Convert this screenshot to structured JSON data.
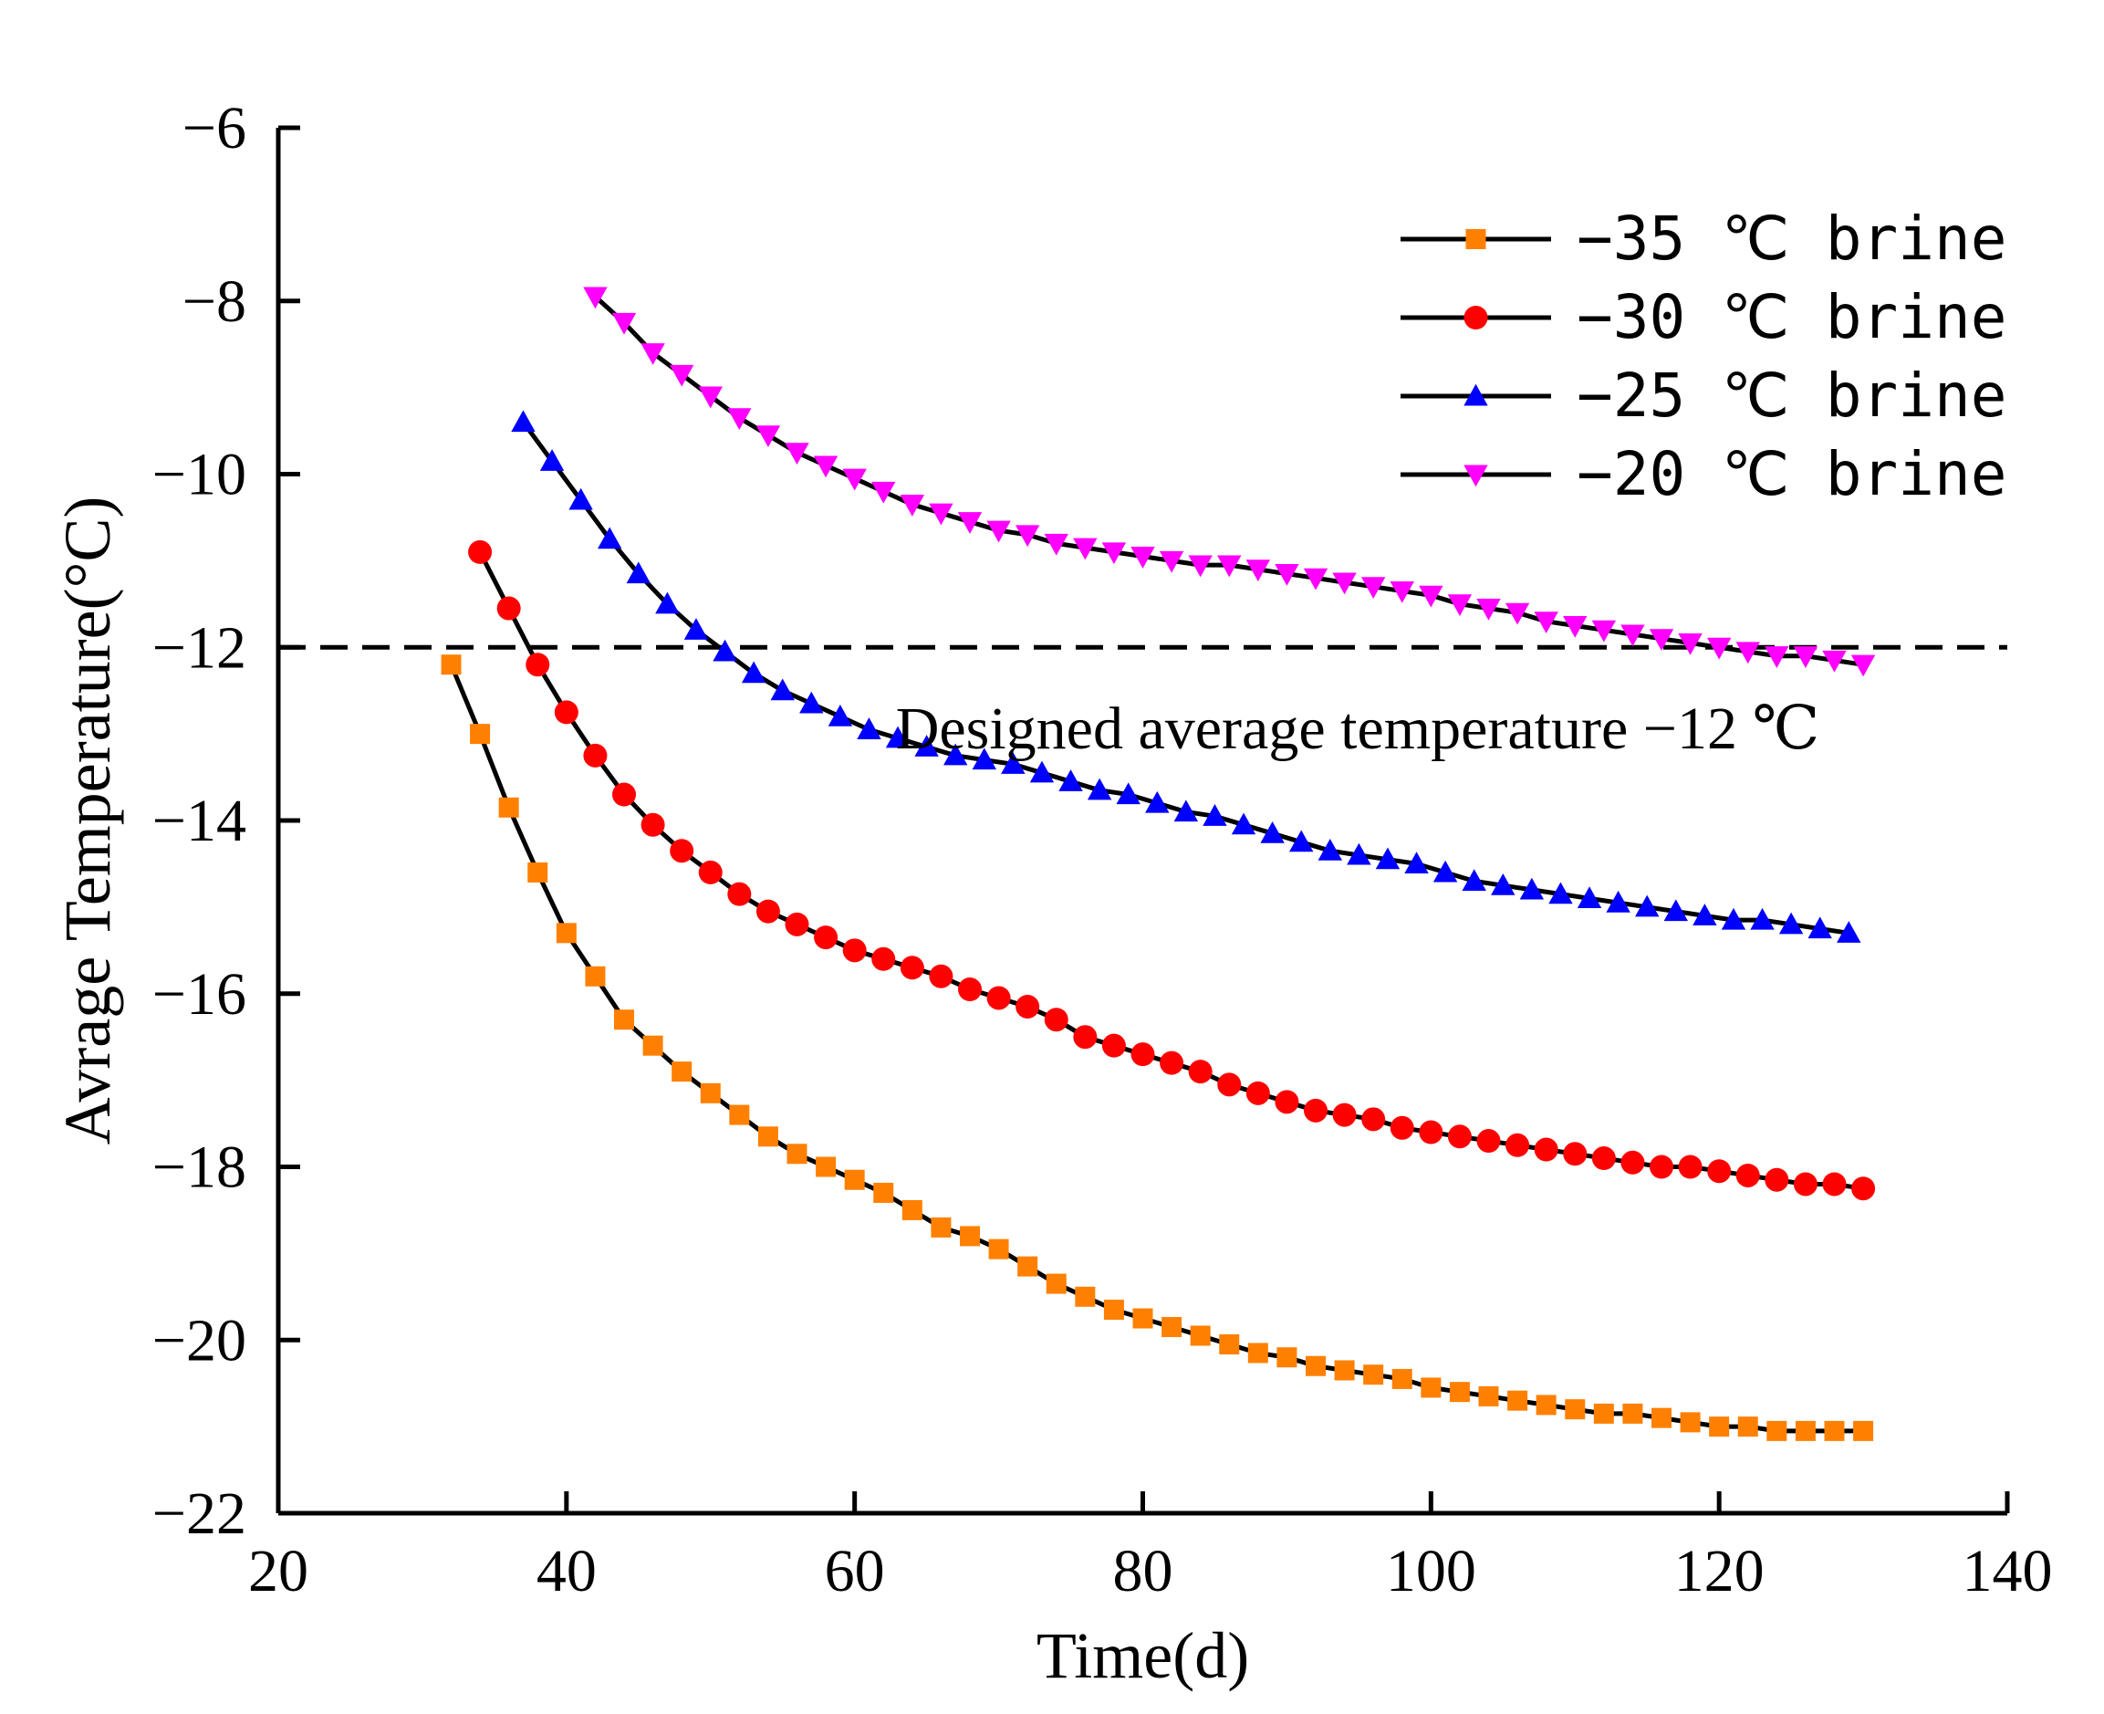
{
  "chart_data": {
    "type": "line",
    "title": "",
    "xlabel": "Time(d)",
    "ylabel": "Avrage Temperature(°C)",
    "xlim": [
      20,
      140
    ],
    "ylim": [
      -22,
      -6
    ],
    "xticks": [
      20,
      40,
      60,
      80,
      100,
      120,
      140
    ],
    "yticks": [
      -22,
      -20,
      -18,
      -16,
      -14,
      -12,
      -10,
      -8,
      -6
    ],
    "xtick_labels": [
      "20",
      "40",
      "60",
      "80",
      "100",
      "120",
      "140"
    ],
    "ytick_labels": [
      "−22",
      "−20",
      "−18",
      "−16",
      "−14",
      "−12",
      "−10",
      "−8",
      "−6"
    ],
    "grid": false,
    "legend_position": "top-right",
    "reference_line": {
      "y": -12,
      "style": "dashed",
      "label": "Designed average temperature −12 ℃"
    },
    "series": [
      {
        "name": "−35 ℃ brine",
        "color": "#ff8000",
        "marker": "square",
        "x": [
          32,
          34,
          36,
          38,
          40,
          42,
          44,
          46,
          48,
          50,
          52,
          54,
          56,
          58,
          60,
          62,
          64,
          66,
          68,
          70,
          72,
          74,
          76,
          78,
          80,
          82,
          84,
          86,
          88,
          90,
          92,
          94,
          96,
          98,
          100,
          102,
          104,
          106,
          108,
          110,
          112,
          114,
          116,
          118,
          120,
          122,
          124,
          126,
          128,
          130
        ],
        "y": [
          -12.2,
          -13.0,
          -13.85,
          -14.6,
          -15.3,
          -15.8,
          -16.3,
          -16.6,
          -16.9,
          -17.15,
          -17.4,
          -17.65,
          -17.85,
          -18.0,
          -18.15,
          -18.3,
          -18.5,
          -18.7,
          -18.8,
          -18.95,
          -19.15,
          -19.35,
          -19.5,
          -19.65,
          -19.75,
          -19.85,
          -19.95,
          -20.05,
          -20.15,
          -20.2,
          -20.3,
          -20.35,
          -20.4,
          -20.45,
          -20.55,
          -20.6,
          -20.65,
          -20.7,
          -20.75,
          -20.8,
          -20.85,
          -20.85,
          -20.9,
          -20.95,
          -21.0,
          -21.0,
          -21.05,
          -21.05,
          -21.05,
          -21.05
        ]
      },
      {
        "name": "−30 ℃ brine",
        "color": "#ff0000",
        "marker": "circle",
        "x": [
          34,
          36,
          38,
          40,
          42,
          44,
          46,
          48,
          50,
          52,
          54,
          56,
          58,
          60,
          62,
          64,
          66,
          68,
          70,
          72,
          74,
          76,
          78,
          80,
          82,
          84,
          86,
          88,
          90,
          92,
          94,
          96,
          98,
          100,
          102,
          104,
          106,
          108,
          110,
          112,
          114,
          116,
          118,
          120,
          122,
          124,
          126,
          128,
          130
        ],
        "y": [
          -10.9,
          -11.55,
          -12.2,
          -12.75,
          -13.25,
          -13.7,
          -14.05,
          -14.35,
          -14.6,
          -14.85,
          -15.05,
          -15.2,
          -15.35,
          -15.5,
          -15.6,
          -15.7,
          -15.8,
          -15.95,
          -16.05,
          -16.15,
          -16.3,
          -16.5,
          -16.6,
          -16.7,
          -16.8,
          -16.9,
          -17.05,
          -17.15,
          -17.25,
          -17.35,
          -17.4,
          -17.45,
          -17.55,
          -17.6,
          -17.65,
          -17.7,
          -17.75,
          -17.8,
          -17.85,
          -17.9,
          -17.95,
          -18.0,
          -18.0,
          -18.05,
          -18.1,
          -18.15,
          -18.2,
          -18.2,
          -18.25
        ]
      },
      {
        "name": "−25 ℃ brine",
        "color": "#0000ff",
        "marker": "triangle-up",
        "x": [
          37,
          39,
          41,
          43,
          45,
          47,
          49,
          51,
          53,
          55,
          57,
          59,
          61,
          63,
          65,
          67,
          69,
          71,
          73,
          75,
          77,
          79,
          81,
          83,
          85,
          87,
          89,
          91,
          93,
          95,
          97,
          99,
          101,
          103,
          105,
          107,
          109,
          111,
          113,
          115,
          117,
          119,
          121,
          123,
          125,
          127,
          129
        ],
        "y": [
          -9.4,
          -9.85,
          -10.3,
          -10.75,
          -11.15,
          -11.5,
          -11.8,
          -12.05,
          -12.3,
          -12.5,
          -12.65,
          -12.8,
          -12.95,
          -13.05,
          -13.15,
          -13.25,
          -13.3,
          -13.35,
          -13.45,
          -13.55,
          -13.65,
          -13.7,
          -13.8,
          -13.9,
          -13.95,
          -14.05,
          -14.15,
          -14.25,
          -14.35,
          -14.4,
          -14.45,
          -14.5,
          -14.6,
          -14.7,
          -14.75,
          -14.8,
          -14.85,
          -14.9,
          -14.95,
          -15.0,
          -15.05,
          -15.1,
          -15.15,
          -15.15,
          -15.2,
          -15.25,
          -15.3
        ]
      },
      {
        "name": "−20 ℃ brine",
        "color": "#ff00ff",
        "marker": "triangle-down",
        "x": [
          42,
          44,
          46,
          48,
          50,
          52,
          54,
          56,
          58,
          60,
          62,
          64,
          66,
          68,
          70,
          72,
          74,
          76,
          78,
          80,
          82,
          84,
          86,
          88,
          90,
          92,
          94,
          96,
          98,
          100,
          102,
          104,
          106,
          108,
          110,
          112,
          114,
          116,
          118,
          120,
          122,
          124,
          126,
          128,
          130
        ],
        "y": [
          -7.95,
          -8.25,
          -8.6,
          -8.85,
          -9.1,
          -9.35,
          -9.55,
          -9.75,
          -9.9,
          -10.05,
          -10.2,
          -10.35,
          -10.45,
          -10.55,
          -10.65,
          -10.7,
          -10.8,
          -10.85,
          -10.9,
          -10.95,
          -11.0,
          -11.05,
          -11.05,
          -11.1,
          -11.15,
          -11.2,
          -11.25,
          -11.3,
          -11.35,
          -11.4,
          -11.5,
          -11.55,
          -11.6,
          -11.7,
          -11.75,
          -11.8,
          -11.85,
          -11.9,
          -11.95,
          -12.0,
          -12.05,
          -12.1,
          -12.1,
          -12.15,
          -12.2
        ]
      }
    ]
  }
}
